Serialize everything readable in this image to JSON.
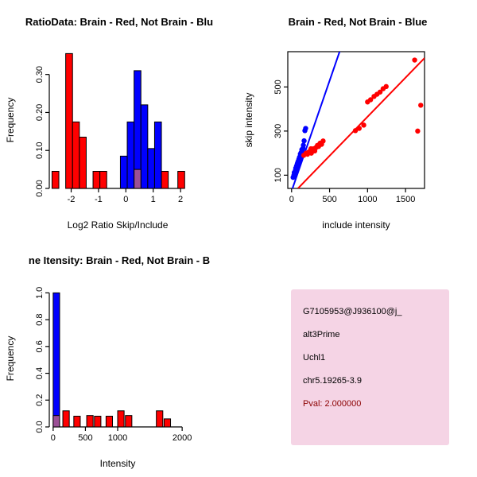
{
  "window": {
    "background": "#FFFFFF"
  },
  "chart_data": [
    {
      "id": "log-ratio-histogram",
      "type": "bar",
      "title": "RatioData: Brain - Red, Not Brain - Blu",
      "xlabel": "Log2 Ratio Skip/Include",
      "ylabel": "Frequency",
      "xlim": [
        -2.8,
        2.2
      ],
      "ylim": [
        0,
        0.36
      ],
      "xticks": [
        -2,
        -1,
        0,
        1,
        2
      ],
      "xtick_labels": [
        "-2",
        "-1",
        "0",
        "1",
        "2"
      ],
      "yticks": [
        0,
        0.1,
        0.2,
        0.3
      ],
      "ytick_labels": [
        "0.00",
        "0.10",
        "0.20",
        "0.30"
      ],
      "bin_width": 0.25,
      "grid": false,
      "series": [
        {
          "name": "Brain",
          "color": "#FF0000",
          "bars": [
            [
              -2.7,
              -2.45,
              0.045
            ],
            [
              -2.2,
              -1.95,
              0.355
            ],
            [
              -1.95,
              -1.7,
              0.175
            ],
            [
              -1.7,
              -1.45,
              0.135
            ],
            [
              -1.2,
              -0.95,
              0.045
            ],
            [
              -0.95,
              -0.7,
              0.045
            ],
            [
              1.3,
              1.55,
              0.045
            ],
            [
              1.9,
              2.15,
              0.045
            ]
          ]
        },
        {
          "name": "Not Brain",
          "color": "#0000FF",
          "bars": [
            [
              -0.2,
              0.05,
              0.085
            ],
            [
              0.05,
              0.3,
              0.175
            ],
            [
              0.3,
              0.55,
              0.31
            ],
            [
              0.55,
              0.8,
              0.22
            ],
            [
              0.8,
              1.05,
              0.105
            ],
            [
              1.05,
              1.3,
              0.175
            ]
          ]
        },
        {
          "name": "Overlap",
          "color": "#9B4F96",
          "bars": [
            [
              0.3,
              0.55,
              0.05
            ]
          ]
        }
      ]
    },
    {
      "id": "intensity-scatter",
      "type": "scatter",
      "title": "Brain - Red, Not Brain - Blue",
      "xlabel": "include intensity",
      "ylabel": "skip intensity",
      "xlim": [
        -50,
        1750
      ],
      "ylim": [
        40,
        660
      ],
      "xticks": [
        0,
        500,
        1000,
        1500
      ],
      "xtick_labels": [
        "0",
        "500",
        "1000",
        "1500"
      ],
      "yticks": [
        100,
        300,
        500
      ],
      "ytick_labels": [
        "100",
        "300",
        "500"
      ],
      "grid": false,
      "series": [
        {
          "name": "Not Brain",
          "color": "#0000FF",
          "line": [
            [
              0,
              28
            ],
            [
              700,
              728
            ]
          ],
          "points": [
            [
              20,
              90
            ],
            [
              30,
              100
            ],
            [
              35,
              112
            ],
            [
              40,
              95
            ],
            [
              45,
              105
            ],
            [
              50,
              122
            ],
            [
              55,
              132
            ],
            [
              60,
              115
            ],
            [
              62,
              126
            ],
            [
              65,
              142
            ],
            [
              70,
              135
            ],
            [
              75,
              152
            ],
            [
              80,
              146
            ],
            [
              85,
              162
            ],
            [
              90,
              156
            ],
            [
              95,
              172
            ],
            [
              100,
              166
            ],
            [
              105,
              182
            ],
            [
              110,
              176
            ],
            [
              115,
              196
            ],
            [
              120,
              192
            ],
            [
              125,
              202
            ],
            [
              130,
              186
            ],
            [
              135,
              216
            ],
            [
              140,
              212
            ],
            [
              150,
              222
            ],
            [
              155,
              236
            ],
            [
              165,
              256
            ],
            [
              175,
              302
            ],
            [
              185,
              312
            ]
          ]
        },
        {
          "name": "Brain",
          "color": "#FF0000",
          "line": [
            [
              84,
              40
            ],
            [
              1750,
              631
            ]
          ],
          "points": [
            [
              160,
              190
            ],
            [
              190,
              200
            ],
            [
              210,
              195
            ],
            [
              225,
              205
            ],
            [
              245,
              210
            ],
            [
              260,
              200
            ],
            [
              275,
              215
            ],
            [
              290,
              220
            ],
            [
              305,
              210
            ],
            [
              320,
              225
            ],
            [
              340,
              235
            ],
            [
              355,
              230
            ],
            [
              375,
              245
            ],
            [
              395,
              240
            ],
            [
              415,
              255
            ],
            [
              255,
              220
            ],
            [
              840,
              302
            ],
            [
              890,
              312
            ],
            [
              950,
              327
            ],
            [
              1000,
              432
            ],
            [
              1040,
              442
            ],
            [
              1085,
              457
            ],
            [
              1125,
              467
            ],
            [
              1165,
              477
            ],
            [
              1205,
              492
            ],
            [
              1245,
              502
            ],
            [
              1620,
              622
            ],
            [
              1700,
              417
            ],
            [
              1660,
              300
            ]
          ]
        }
      ]
    },
    {
      "id": "gene-intensity-histogram",
      "type": "bar",
      "title": "ne Itensity: Brain - Red, Not Brain - B",
      "xlabel": "Intensity",
      "ylabel": "Frequency",
      "xlim": [
        -60,
        2060
      ],
      "ylim": [
        0,
        1.02
      ],
      "xticks": [
        0,
        500,
        1000,
        2000
      ],
      "xtick_labels": [
        "0",
        "500",
        "1000",
        "2000"
      ],
      "yticks": [
        0,
        0.2,
        0.4,
        0.6,
        0.8,
        1.0
      ],
      "ytick_labels": [
        "0.0",
        "0.2",
        "0.4",
        "0.6",
        "0.8",
        "1.0"
      ],
      "bin_width": 100,
      "grid": false,
      "series": [
        {
          "name": "Not Brain",
          "color": "#0000FF",
          "bars": [
            [
              0,
              100,
              1.0
            ]
          ]
        },
        {
          "name": "Brain",
          "color": "#FF0000",
          "bars": [
            [
              150,
              250,
              0.12
            ],
            [
              320,
              420,
              0.08
            ],
            [
              520,
              620,
              0.085
            ],
            [
              640,
              740,
              0.08
            ],
            [
              820,
              920,
              0.08
            ],
            [
              1000,
              1100,
              0.12
            ],
            [
              1120,
              1220,
              0.085
            ],
            [
              1600,
              1700,
              0.12
            ],
            [
              1720,
              1820,
              0.06
            ]
          ]
        },
        {
          "name": "Overlap",
          "color": "#9B4F96",
          "bars": [
            [
              0,
              100,
              0.085
            ]
          ]
        }
      ]
    }
  ],
  "info_panel": {
    "background": "#F5D4E5",
    "text_color": "#000000",
    "pval_color": "#8B0000",
    "lines": [
      "G7105953@J936100@j_",
      "alt3Prime",
      "Uchl1",
      "chr5.19265-3.9"
    ],
    "pval": "Pval: 2.000000"
  }
}
